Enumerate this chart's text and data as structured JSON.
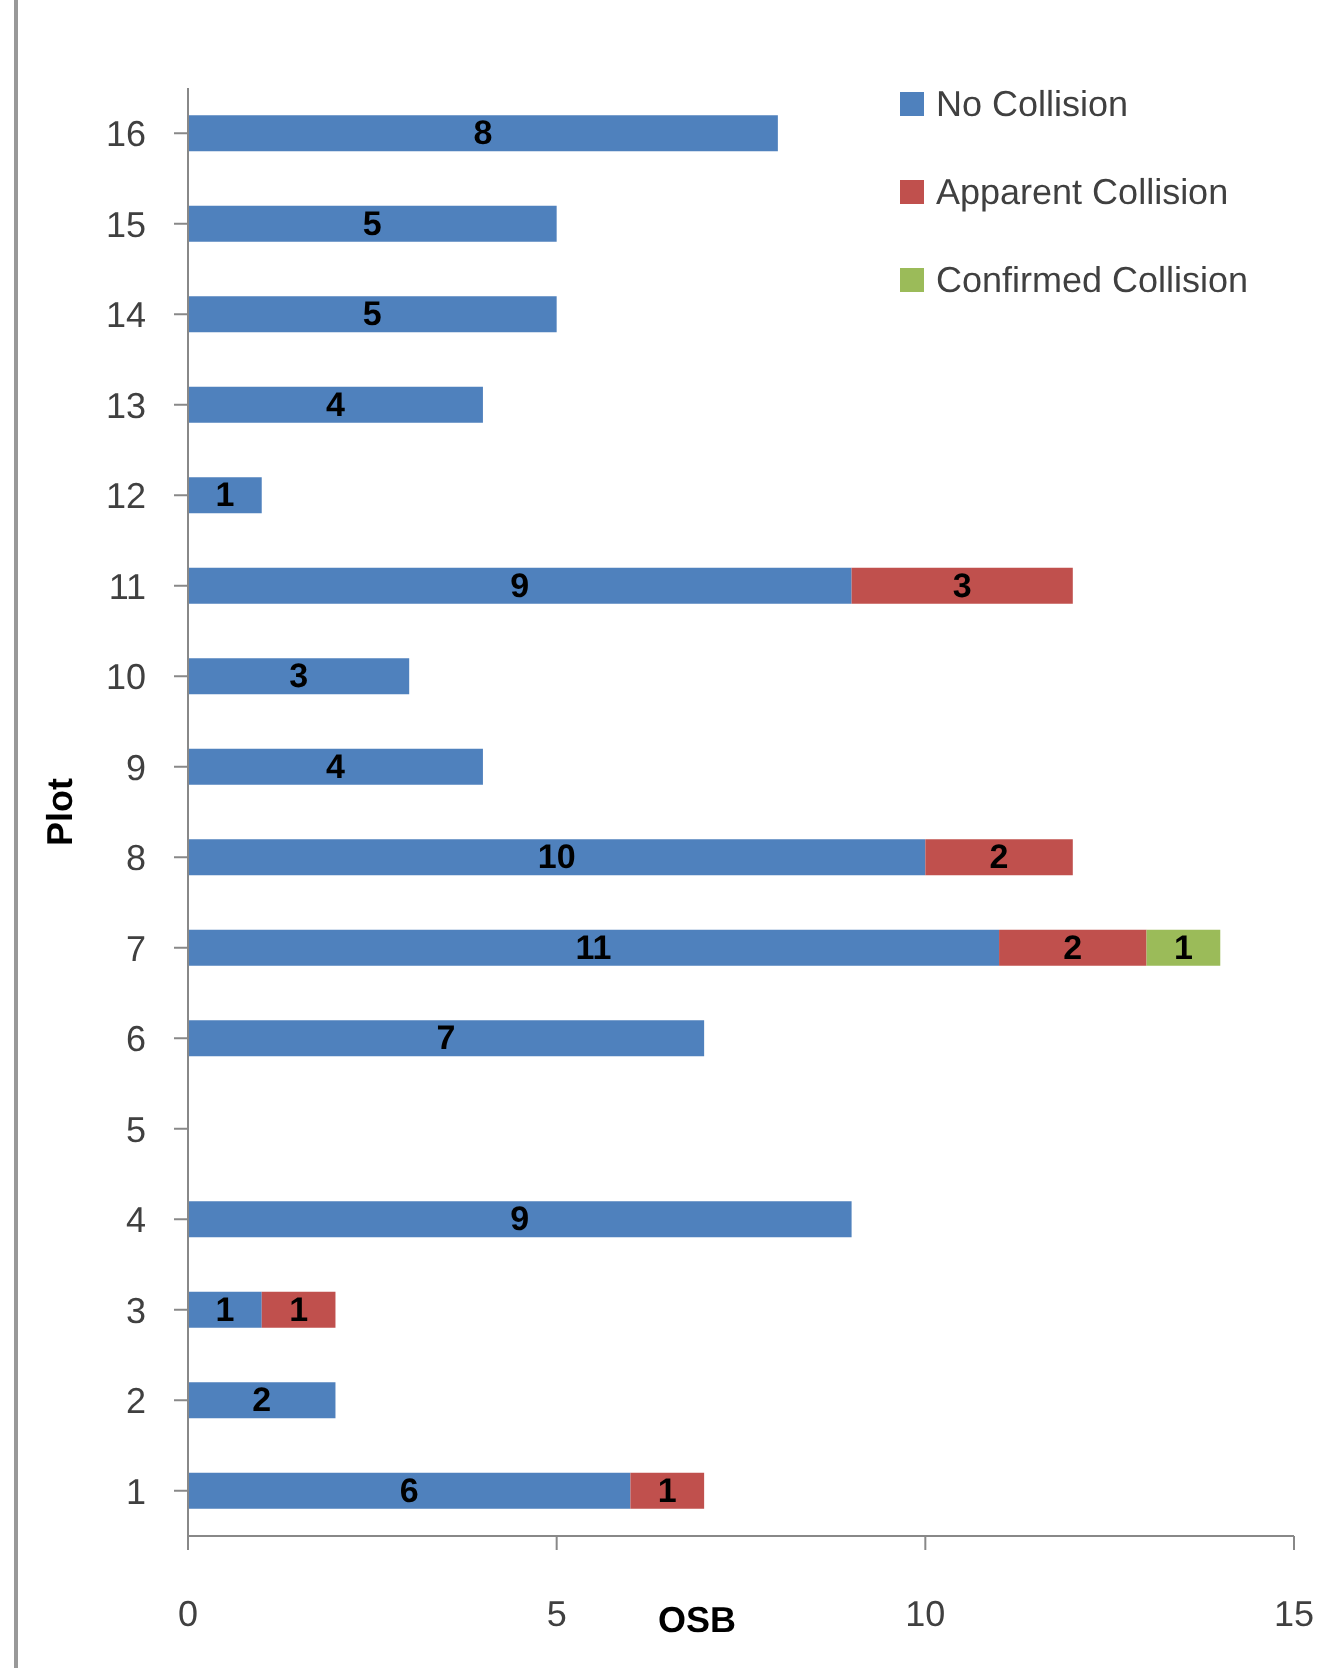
{
  "chart_data": {
    "type": "bar",
    "orientation": "horizontal",
    "stacked": true,
    "xlabel": "OSB",
    "ylabel": "Plot",
    "categories": [
      "16",
      "15",
      "14",
      "13",
      "12",
      "11",
      "10",
      "9",
      "8",
      "7",
      "6",
      "5",
      "4",
      "3",
      "2",
      "1"
    ],
    "series": [
      {
        "name": "No Collision",
        "color": "#4f81bd",
        "values": [
          8,
          5,
          5,
          4,
          1,
          9,
          3,
          4,
          10,
          11,
          7,
          null,
          9,
          1,
          2,
          6
        ]
      },
      {
        "name": "Apparent Collision",
        "color": "#c0504d",
        "values": [
          null,
          null,
          null,
          null,
          null,
          3,
          null,
          null,
          2,
          2,
          null,
          null,
          null,
          1,
          null,
          1
        ]
      },
      {
        "name": "Confirmed Collision",
        "color": "#9bbb59",
        "values": [
          null,
          null,
          null,
          null,
          null,
          null,
          null,
          null,
          null,
          1,
          null,
          null,
          null,
          null,
          null,
          null
        ]
      }
    ],
    "xlim": [
      0,
      15
    ],
    "xticks": [
      0,
      5,
      10,
      15
    ],
    "grid": false,
    "legend": "top right",
    "data_labels": true
  }
}
